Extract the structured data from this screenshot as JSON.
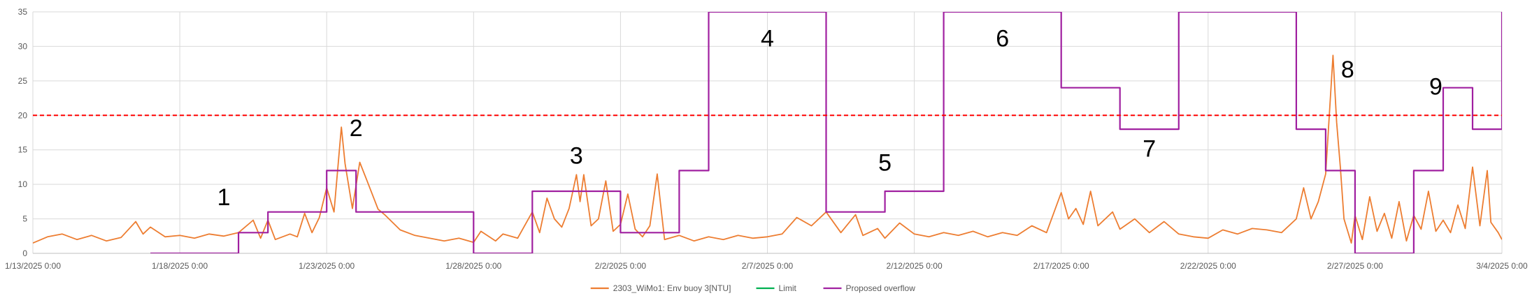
{
  "chart_data": {
    "type": "line",
    "title": "",
    "xlabel": "",
    "ylabel": "",
    "ylim": [
      0,
      35
    ],
    "yticks": [
      0,
      5,
      10,
      15,
      20,
      25,
      30,
      35
    ],
    "xlim": [
      "1/13/2025 0:00",
      "3/4/2025 0:00"
    ],
    "xticks": [
      "1/13/2025 0:00",
      "1/18/2025 0:00",
      "1/23/2025 0:00",
      "1/28/2025 0:00",
      "2/2/2025 0:00",
      "2/7/2025 0:00",
      "2/12/2025 0:00",
      "2/17/2025 0:00",
      "2/22/2025 0:00",
      "2/27/2025 0:00",
      "3/4/2025 0:00"
    ],
    "grid": true,
    "legend_position": "bottom",
    "series": [
      {
        "name": "2303_WiMo1: Env buoy 3[NTU]",
        "color": "#ED7D31",
        "style": "solid",
        "points": [
          [
            "1/13/2025 0:00",
            1.5
          ],
          [
            "1/13/2025 12:00",
            2.4
          ],
          [
            "1/14/2025 0:00",
            2.8
          ],
          [
            "1/14/2025 12:00",
            2.0
          ],
          [
            "1/15/2025 0:00",
            2.6
          ],
          [
            "1/15/2025 12:00",
            1.8
          ],
          [
            "1/16/2025 0:00",
            2.3
          ],
          [
            "1/16/2025 12:00",
            4.6
          ],
          [
            "1/16/2025 18:00",
            2.8
          ],
          [
            "1/17/2025 0:00",
            3.8
          ],
          [
            "1/17/2025 12:00",
            2.4
          ],
          [
            "1/18/2025 0:00",
            2.6
          ],
          [
            "1/18/2025 12:00",
            2.2
          ],
          [
            "1/19/2025 0:00",
            2.8
          ],
          [
            "1/19/2025 12:00",
            2.5
          ],
          [
            "1/20/2025 0:00",
            3.0
          ],
          [
            "1/20/2025 12:00",
            4.8
          ],
          [
            "1/20/2025 18:00",
            2.2
          ],
          [
            "1/21/2025 0:00",
            4.8
          ],
          [
            "1/21/2025 6:00",
            2.0
          ],
          [
            "1/21/2025 18:00",
            2.8
          ],
          [
            "1/22/2025 0:00",
            2.4
          ],
          [
            "1/22/2025 6:00",
            5.8
          ],
          [
            "1/22/2025 12:00",
            3.0
          ],
          [
            "1/22/2025 18:00",
            5.2
          ],
          [
            "1/23/2025 0:00",
            9.5
          ],
          [
            "1/23/2025 6:00",
            6.0
          ],
          [
            "1/23/2025 12:00",
            18.3
          ],
          [
            "1/23/2025 15:00",
            13.0
          ],
          [
            "1/23/2025 21:00",
            6.5
          ],
          [
            "1/24/2025 3:00",
            13.2
          ],
          [
            "1/24/2025 9:00",
            10.5
          ],
          [
            "1/24/2025 18:00",
            6.4
          ],
          [
            "1/25/2025 0:00",
            5.5
          ],
          [
            "1/25/2025 12:00",
            3.4
          ],
          [
            "1/26/2025 0:00",
            2.6
          ],
          [
            "1/26/2025 12:00",
            2.2
          ],
          [
            "1/27/2025 0:00",
            1.8
          ],
          [
            "1/27/2025 12:00",
            2.2
          ],
          [
            "1/28/2025 0:00",
            1.6
          ],
          [
            "1/28/2025 6:00",
            3.2
          ],
          [
            "1/28/2025 18:00",
            1.8
          ],
          [
            "1/29/2025 0:00",
            2.8
          ],
          [
            "1/29/2025 12:00",
            2.2
          ],
          [
            "1/30/2025 0:00",
            6.0
          ],
          [
            "1/30/2025 6:00",
            3.0
          ],
          [
            "1/30/2025 12:00",
            8.0
          ],
          [
            "1/30/2025 18:00",
            5.0
          ],
          [
            "1/31/2025 0:00",
            3.8
          ],
          [
            "1/31/2025 6:00",
            6.5
          ],
          [
            "1/31/2025 12:00",
            11.4
          ],
          [
            "1/31/2025 15:00",
            7.5
          ],
          [
            "1/31/2025 18:00",
            11.4
          ],
          [
            "2/1/2025 0:00",
            4.0
          ],
          [
            "2/1/2025 6:00",
            5.0
          ],
          [
            "2/1/2025 12:00",
            10.5
          ],
          [
            "2/1/2025 18:00",
            3.2
          ],
          [
            "2/2/2025 0:00",
            4.2
          ],
          [
            "2/2/2025 6:00",
            8.6
          ],
          [
            "2/2/2025 12:00",
            3.5
          ],
          [
            "2/2/2025 18:00",
            2.4
          ],
          [
            "2/3/2025 0:00",
            4.0
          ],
          [
            "2/3/2025 6:00",
            11.5
          ],
          [
            "2/3/2025 12:00",
            2.0
          ],
          [
            "2/4/2025 0:00",
            2.6
          ],
          [
            "2/4/2025 12:00",
            1.8
          ],
          [
            "2/5/2025 0:00",
            2.4
          ],
          [
            "2/5/2025 12:00",
            2.0
          ],
          [
            "2/6/2025 0:00",
            2.6
          ],
          [
            "2/6/2025 12:00",
            2.2
          ],
          [
            "2/7/2025 0:00",
            2.4
          ],
          [
            "2/7/2025 12:00",
            2.8
          ],
          [
            "2/8/2025 0:00",
            5.2
          ],
          [
            "2/8/2025 12:00",
            4.0
          ],
          [
            "2/9/2025 0:00",
            6.0
          ],
          [
            "2/9/2025 12:00",
            3.0
          ],
          [
            "2/10/2025 0:00",
            5.6
          ],
          [
            "2/10/2025 6:00",
            2.6
          ],
          [
            "2/10/2025 18:00",
            3.6
          ],
          [
            "2/11/2025 0:00",
            2.2
          ],
          [
            "2/11/2025 12:00",
            4.4
          ],
          [
            "2/12/2025 0:00",
            2.8
          ],
          [
            "2/12/2025 12:00",
            2.4
          ],
          [
            "2/13/2025 0:00",
            3.0
          ],
          [
            "2/13/2025 12:00",
            2.6
          ],
          [
            "2/14/2025 0:00",
            3.2
          ],
          [
            "2/14/2025 12:00",
            2.4
          ],
          [
            "2/15/2025 0:00",
            3.0
          ],
          [
            "2/15/2025 12:00",
            2.6
          ],
          [
            "2/16/2025 0:00",
            4.0
          ],
          [
            "2/16/2025 12:00",
            3.0
          ],
          [
            "2/17/2025 0:00",
            8.8
          ],
          [
            "2/17/2025 6:00",
            5.0
          ],
          [
            "2/17/2025 12:00",
            6.5
          ],
          [
            "2/17/2025 18:00",
            4.2
          ],
          [
            "2/18/2025 0:00",
            9.0
          ],
          [
            "2/18/2025 6:00",
            4.0
          ],
          [
            "2/18/2025 18:00",
            6.0
          ],
          [
            "2/19/2025 0:00",
            3.5
          ],
          [
            "2/19/2025 12:00",
            5.0
          ],
          [
            "2/20/2025 0:00",
            3.0
          ],
          [
            "2/20/2025 12:00",
            4.6
          ],
          [
            "2/21/2025 0:00",
            2.8
          ],
          [
            "2/21/2025 12:00",
            2.4
          ],
          [
            "2/22/2025 0:00",
            2.2
          ],
          [
            "2/22/2025 12:00",
            3.4
          ],
          [
            "2/23/2025 0:00",
            2.8
          ],
          [
            "2/23/2025 12:00",
            3.6
          ],
          [
            "2/24/2025 0:00",
            3.4
          ],
          [
            "2/24/2025 12:00",
            3.0
          ],
          [
            "2/25/2025 0:00",
            5.0
          ],
          [
            "2/25/2025 6:00",
            9.5
          ],
          [
            "2/25/2025 12:00",
            5.0
          ],
          [
            "2/25/2025 18:00",
            7.5
          ],
          [
            "2/26/2025 0:00",
            11.5
          ],
          [
            "2/26/2025 3:00",
            20.0
          ],
          [
            "2/26/2025 6:00",
            28.7
          ],
          [
            "2/26/2025 9:00",
            19.0
          ],
          [
            "2/26/2025 12:00",
            12.5
          ],
          [
            "2/26/2025 15:00",
            5.0
          ],
          [
            "2/26/2025 21:00",
            1.5
          ],
          [
            "2/27/2025 0:00",
            5.5
          ],
          [
            "2/27/2025 6:00",
            2.0
          ],
          [
            "2/27/2025 12:00",
            8.2
          ],
          [
            "2/27/2025 18:00",
            3.2
          ],
          [
            "2/28/2025 0:00",
            5.8
          ],
          [
            "2/28/2025 6:00",
            2.2
          ],
          [
            "2/28/2025 12:00",
            7.5
          ],
          [
            "2/28/2025 18:00",
            1.8
          ],
          [
            "3/1/2025 0:00",
            5.5
          ],
          [
            "3/1/2025 6:00",
            3.5
          ],
          [
            "3/1/2025 12:00",
            9.0
          ],
          [
            "3/1/2025 18:00",
            3.2
          ],
          [
            "3/2/2025 0:00",
            4.8
          ],
          [
            "3/2/2025 6:00",
            3.0
          ],
          [
            "3/2/2025 12:00",
            7.0
          ],
          [
            "3/2/2025 18:00",
            3.6
          ],
          [
            "3/3/2025 0:00",
            12.5
          ],
          [
            "3/3/2025 6:00",
            4.0
          ],
          [
            "3/3/2025 12:00",
            12.0
          ],
          [
            "3/3/2025 15:00",
            4.5
          ],
          [
            "3/3/2025 21:00",
            3.0
          ],
          [
            "3/4/2025 0:00",
            2.0
          ]
        ]
      },
      {
        "name": "Limit",
        "color": "#00B050",
        "style": "solid",
        "points": []
      },
      {
        "name": "Proposed overflow",
        "color": "#A020A0",
        "style": "step",
        "points": [
          [
            "1/17/2025 0:00",
            0
          ],
          [
            "1/20/2025 0:00",
            0
          ],
          [
            "1/20/2025 0:00",
            3
          ],
          [
            "1/21/2025 0:00",
            3
          ],
          [
            "1/21/2025 0:00",
            6
          ],
          [
            "1/23/2025 0:00",
            6
          ],
          [
            "1/23/2025 0:00",
            12
          ],
          [
            "1/24/2025 0:00",
            12
          ],
          [
            "1/24/2025 0:00",
            6
          ],
          [
            "1/28/2025 0:00",
            6
          ],
          [
            "1/28/2025 0:00",
            0
          ],
          [
            "1/30/2025 0:00",
            0
          ],
          [
            "1/30/2025 0:00",
            9
          ],
          [
            "2/2/2025 0:00",
            9
          ],
          [
            "2/2/2025 0:00",
            3
          ],
          [
            "2/4/2025 0:00",
            3
          ],
          [
            "2/4/2025 0:00",
            12
          ],
          [
            "2/5/2025 0:00",
            12
          ],
          [
            "2/5/2025 0:00",
            35
          ],
          [
            "2/9/2025 0:00",
            35
          ],
          [
            "2/9/2025 0:00",
            6
          ],
          [
            "2/11/2025 0:00",
            6
          ],
          [
            "2/11/2025 0:00",
            9
          ],
          [
            "2/13/2025 0:00",
            9
          ],
          [
            "2/13/2025 0:00",
            35
          ],
          [
            "2/17/2025 0:00",
            35
          ],
          [
            "2/17/2025 0:00",
            24
          ],
          [
            "2/19/2025 0:00",
            24
          ],
          [
            "2/19/2025 0:00",
            18
          ],
          [
            "2/21/2025 0:00",
            18
          ],
          [
            "2/21/2025 0:00",
            35
          ],
          [
            "2/25/2025 0:00",
            35
          ],
          [
            "2/25/2025 0:00",
            18
          ],
          [
            "2/26/2025 0:00",
            18
          ],
          [
            "2/26/2025 0:00",
            12
          ],
          [
            "2/27/2025 0:00",
            12
          ],
          [
            "2/27/2025 0:00",
            0
          ],
          [
            "3/1/2025 0:00",
            0
          ],
          [
            "3/1/2025 0:00",
            12
          ],
          [
            "3/2/2025 0:00",
            12
          ],
          [
            "3/2/2025 0:00",
            24
          ],
          [
            "3/3/2025 0:00",
            24
          ],
          [
            "3/3/2025 0:00",
            18
          ],
          [
            "3/4/2025 0:00",
            18
          ],
          [
            "3/4/2025 0:00",
            35
          ]
        ]
      }
    ],
    "reference_lines": [
      {
        "y": 20,
        "color": "#FF0000",
        "style": "dashed"
      }
    ],
    "annotations": [
      {
        "text": "1",
        "x": "1/19/2025 12:00",
        "y": 7
      },
      {
        "text": "2",
        "x": "1/24/2025 0:00",
        "y": 17
      },
      {
        "text": "3",
        "x": "1/31/2025 12:00",
        "y": 13
      },
      {
        "text": "4",
        "x": "2/7/2025 0:00",
        "y": 30
      },
      {
        "text": "5",
        "x": "2/11/2025 0:00",
        "y": 12
      },
      {
        "text": "6",
        "x": "2/15/2025 0:00",
        "y": 30
      },
      {
        "text": "7",
        "x": "2/20/2025 0:00",
        "y": 14
      },
      {
        "text": "8",
        "x": "2/26/2025 18:00",
        "y": 25.5
      },
      {
        "text": "9",
        "x": "3/1/2025 18:00",
        "y": 23
      }
    ]
  }
}
